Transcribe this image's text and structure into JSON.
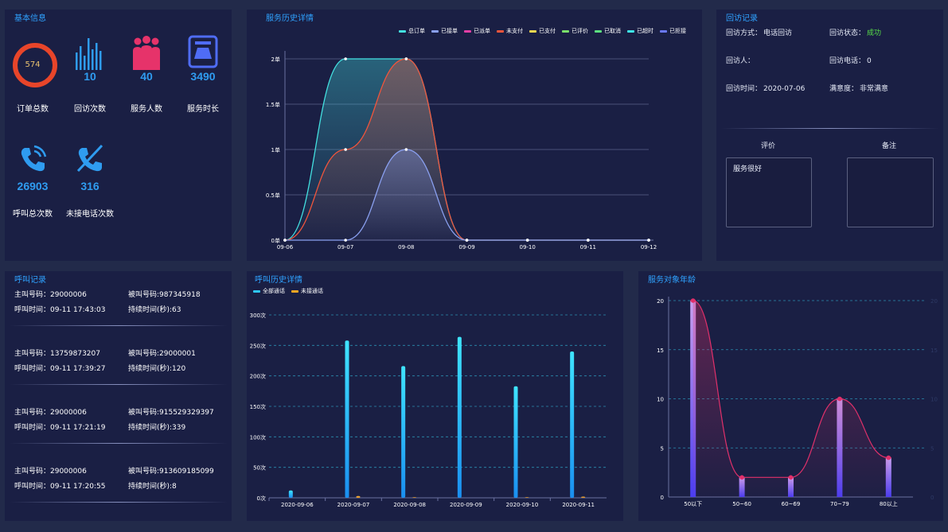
{
  "basic": {
    "title": "基本信息",
    "order_total": {
      "value": "574",
      "label": "订单总数"
    },
    "revisit_count": {
      "value": "10",
      "label": "回访次数"
    },
    "service_people": {
      "value": "40",
      "label": "服务人数"
    },
    "service_duration": {
      "value": "3490",
      "label": "服务时长"
    },
    "call_total": {
      "value": "26903",
      "label": "呼叫总次数"
    },
    "missed_calls": {
      "value": "316",
      "label": "未接电话次数"
    },
    "colors": {
      "accent": "#2f9cf0",
      "ring": "#e8452a",
      "people": "#e6336a",
      "clock": "#4f6cf5"
    }
  },
  "service": {
    "title": "服务历史详情",
    "legend": [
      {
        "name": "总订单",
        "color": "#43e0e0"
      },
      {
        "name": "已接单",
        "color": "#8aa0f0"
      },
      {
        "name": "已派单",
        "color": "#e33fa5"
      },
      {
        "name": "未支付",
        "color": "#f0553c"
      },
      {
        "name": "已支付",
        "color": "#f2d750"
      },
      {
        "name": "已评价",
        "color": "#7adf6a"
      },
      {
        "name": "已取消",
        "color": "#5ce080"
      },
      {
        "name": "已超时",
        "color": "#3ee8e8"
      },
      {
        "name": "已拒接",
        "color": "#6a78f5"
      }
    ],
    "chart_data": {
      "type": "area",
      "categories": [
        "09-06",
        "09-07",
        "09-08",
        "09-09",
        "09-10",
        "09-11",
        "09-12"
      ],
      "y_ticks": [
        "0单",
        "0.5单",
        "1单",
        "1.5单",
        "2单"
      ],
      "ylim": [
        0,
        2
      ],
      "series": [
        {
          "name": "总订单",
          "color": "#43e0e0",
          "values": [
            0,
            2,
            2,
            0,
            0,
            0,
            0
          ]
        },
        {
          "name": "未支付",
          "color": "#f0553c",
          "values": [
            0,
            1,
            2,
            0,
            0,
            0,
            0
          ]
        },
        {
          "name": "已接单",
          "color": "#8aa0f0",
          "values": [
            0,
            0,
            1,
            0,
            0,
            0,
            0
          ]
        }
      ]
    }
  },
  "revisit": {
    "title": "回访记录",
    "method_label": "回访方式：",
    "method_value": "电话回访",
    "status_label": "回访状态：",
    "status_value": "成功",
    "person_label": "回访人：",
    "person_value": "",
    "phone_label": "回访电话：",
    "phone_value": "0",
    "time_label": "回访时间：",
    "time_value": "2020-07-06",
    "satisfaction_label": "满意度：",
    "satisfaction_value": "非常满意",
    "eval_header": "评价",
    "note_header": "备注",
    "eval_text": "服务很好",
    "note_text": "",
    "colors": {
      "success": "#58e048"
    }
  },
  "calls": {
    "title": "呼叫记录",
    "records": [
      {
        "caller": "主叫号码：29000006",
        "callee": "被叫号码:987345918",
        "time": "呼叫时间：09-11 17:43:03",
        "duration": "持续时间(秒):63"
      },
      {
        "caller": "主叫号码：13759873207",
        "callee": "被叫号码:29000001",
        "time": "呼叫时间：09-11 17:39:27",
        "duration": "持续时间(秒):120"
      },
      {
        "caller": "主叫号码：29000006",
        "callee": "被叫号码:915529329397",
        "time": "呼叫时间：09-11 17:21:19",
        "duration": "持续时间(秒):339"
      },
      {
        "caller": "主叫号码：29000006",
        "callee": "被叫号码:913609185099",
        "time": "呼叫时间：09-11 17:20:55",
        "duration": "持续时间(秒):8"
      }
    ]
  },
  "callhist": {
    "title": "呼叫历史详情",
    "legend": [
      {
        "name": "全部通话",
        "color": "#2ec7f8"
      },
      {
        "name": "未接通话",
        "color": "#f5a623"
      }
    ],
    "chart_data": {
      "type": "bar",
      "categories": [
        "2020-09-06",
        "2020-09-07",
        "2020-09-08",
        "2020-09-09",
        "2020-09-10",
        "2020-09-11"
      ],
      "y_ticks": [
        "0次",
        "50次",
        "100次",
        "150次",
        "200次",
        "250次",
        "300次"
      ],
      "ylim": [
        0,
        300
      ],
      "series": [
        {
          "name": "全部通话",
          "color": "#2ec7f8",
          "values": [
            12,
            258,
            216,
            264,
            183,
            240
          ]
        },
        {
          "name": "未接通话",
          "color": "#f5a623",
          "values": [
            0,
            3,
            1,
            0,
            1,
            2
          ]
        }
      ]
    }
  },
  "age": {
    "title": "服务对象年龄",
    "chart_data": {
      "type": "bar",
      "categories": [
        "50以下",
        "50~60",
        "60~69",
        "70~79",
        "80以上"
      ],
      "y_ticks": [
        "0",
        "5",
        "10",
        "15",
        "20"
      ],
      "ylim": [
        0,
        20
      ],
      "values": [
        20,
        2,
        2,
        10,
        4
      ],
      "colors": {
        "bar_top": "#c8a0f0",
        "bar_bottom": "#4a3df0",
        "line": "#e0306a",
        "cap": "#e0306a"
      }
    }
  }
}
